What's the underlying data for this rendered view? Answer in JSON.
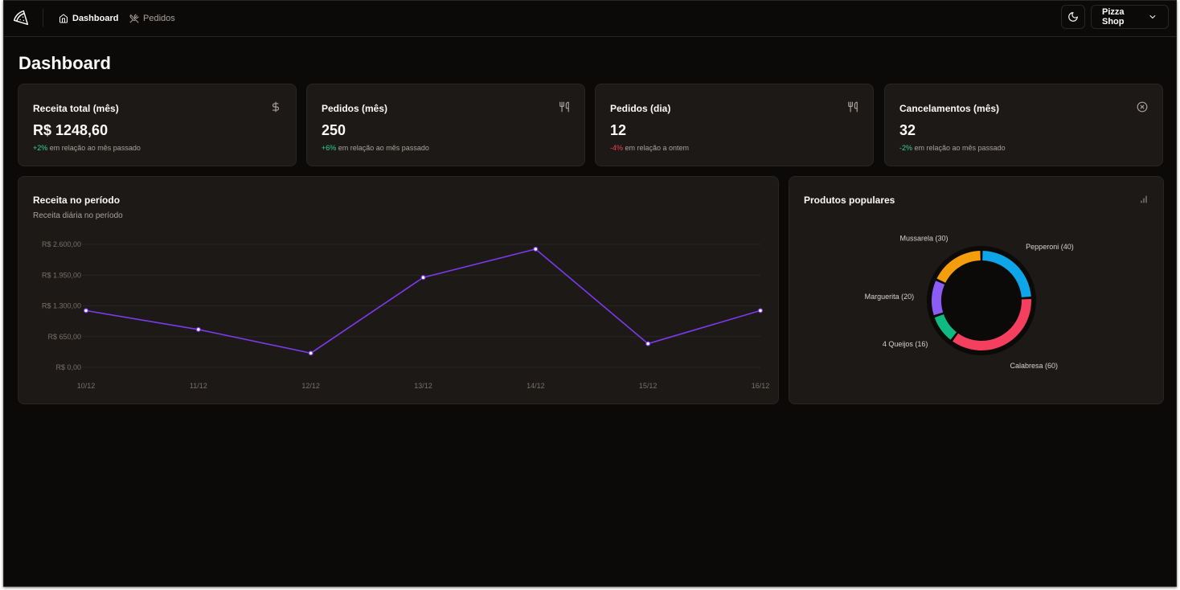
{
  "nav": {
    "links": [
      {
        "label": "Dashboard",
        "icon": "home-icon",
        "active": true
      },
      {
        "label": "Pedidos",
        "icon": "utensils-crossed-icon",
        "active": false
      }
    ],
    "theme_icon": "moon-icon",
    "shop_selector": {
      "label": "Pizza Shop",
      "icon": "chevron-down-icon"
    }
  },
  "page": {
    "title": "Dashboard"
  },
  "stats": [
    {
      "label": "Receita total (mês)",
      "icon": "dollar-sign-icon",
      "value": "R$ 1248,60",
      "delta": "+2%",
      "delta_text": " em relação ao mês passado",
      "trend": "up"
    },
    {
      "label": "Pedidos (mês)",
      "icon": "utensils-icon",
      "value": "250",
      "delta": "+6%",
      "delta_text": " em relação ao mês passado",
      "trend": "up"
    },
    {
      "label": "Pedidos (dia)",
      "icon": "utensils-icon",
      "value": "12",
      "delta": "-4%",
      "delta_text": " em relação a ontem",
      "trend": "down"
    },
    {
      "label": "Cancelamentos (mês)",
      "icon": "circle-x-icon",
      "value": "32",
      "delta": "-2%",
      "delta_text": " em relação ao mês passado",
      "trend": "up"
    }
  ],
  "revenue": {
    "title": "Receita no período",
    "subtitle": "Receita diária no período"
  },
  "popular": {
    "title": "Produtos populares",
    "icon": "bar-chart-icon"
  },
  "colors": {
    "background": "#0c0a09",
    "card": "#1c1917",
    "border": "#292524",
    "line": "#7c3aed",
    "positive": "#34d399",
    "negative": "#f43f5e"
  },
  "chart_data": [
    {
      "type": "line",
      "x": [
        "10/12",
        "11/12",
        "12/12",
        "13/12",
        "14/12",
        "15/12",
        "16/12"
      ],
      "series": [
        {
          "values": [
            1200,
            800,
            300,
            1900,
            2500,
            500,
            1200
          ],
          "color": "#7c3aed"
        }
      ],
      "yticks": [
        "R$ 0,00",
        "R$ 650,00",
        "R$ 1.300,00",
        "R$ 1.950,00",
        "R$ 2.600,00"
      ],
      "ylim": [
        0,
        2600
      ],
      "grid": true,
      "legend": false
    },
    {
      "type": "pie",
      "donut": true,
      "slices": [
        {
          "label": "Pepperoni (40)",
          "value": 40,
          "color": "#0ea5e9"
        },
        {
          "label": "Calabresa (60)",
          "value": 60,
          "color": "#f43f5e"
        },
        {
          "label": "4 Queijos (16)",
          "value": 16,
          "color": "#10b981"
        },
        {
          "label": "Marguerita (20)",
          "value": 20,
          "color": "#8b5cf6"
        },
        {
          "label": "Mussarela (30)",
          "value": 30,
          "color": "#f59e0b"
        }
      ]
    }
  ]
}
